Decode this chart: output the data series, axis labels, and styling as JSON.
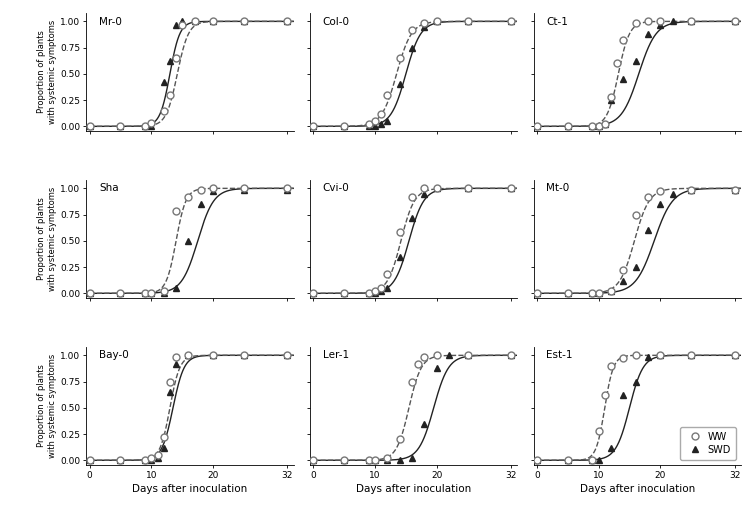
{
  "panels": [
    {
      "title": "Mr-0",
      "ww_points": [
        [
          0,
          0
        ],
        [
          5,
          0
        ],
        [
          9,
          0.0
        ],
        [
          10,
          0.03
        ],
        [
          12,
          0.15
        ],
        [
          13,
          0.3
        ],
        [
          14,
          0.65
        ],
        [
          15,
          0.97
        ],
        [
          17,
          1.0
        ],
        [
          20,
          1.0
        ],
        [
          25,
          1.0
        ],
        [
          32,
          1.0
        ]
      ],
      "swd_points": [
        [
          0,
          0
        ],
        [
          5,
          0
        ],
        [
          9,
          0.0
        ],
        [
          10,
          0.0
        ],
        [
          12,
          0.42
        ],
        [
          13,
          0.62
        ],
        [
          14,
          0.97
        ],
        [
          15,
          1.0
        ],
        [
          17,
          1.0
        ],
        [
          20,
          1.0
        ],
        [
          25,
          1.0
        ],
        [
          32,
          1.0
        ]
      ],
      "ww_inflection": 14.2,
      "ww_slope": 0.9,
      "swd_inflection": 13.0,
      "swd_slope": 0.8
    },
    {
      "title": "Col-0",
      "ww_points": [
        [
          0,
          0
        ],
        [
          5,
          0
        ],
        [
          9,
          0.02
        ],
        [
          10,
          0.05
        ],
        [
          11,
          0.12
        ],
        [
          12,
          0.3
        ],
        [
          14,
          0.65
        ],
        [
          16,
          0.92
        ],
        [
          18,
          0.98
        ],
        [
          20,
          1.0
        ],
        [
          25,
          1.0
        ],
        [
          32,
          1.0
        ]
      ],
      "swd_points": [
        [
          0,
          0
        ],
        [
          5,
          0
        ],
        [
          9,
          0.0
        ],
        [
          10,
          0.0
        ],
        [
          11,
          0.02
        ],
        [
          12,
          0.05
        ],
        [
          14,
          0.4
        ],
        [
          16,
          0.75
        ],
        [
          18,
          0.95
        ],
        [
          20,
          1.0
        ],
        [
          25,
          1.0
        ],
        [
          32,
          1.0
        ]
      ],
      "ww_inflection": 13.5,
      "ww_slope": 1.2,
      "swd_inflection": 15.0,
      "swd_slope": 1.2
    },
    {
      "title": "Ct-1",
      "ww_points": [
        [
          0,
          0
        ],
        [
          5,
          0
        ],
        [
          9,
          0.0
        ],
        [
          10,
          0.0
        ],
        [
          11,
          0.02
        ],
        [
          12,
          0.28
        ],
        [
          13,
          0.6
        ],
        [
          14,
          0.82
        ],
        [
          16,
          0.98
        ],
        [
          18,
          1.0
        ],
        [
          20,
          1.0
        ],
        [
          25,
          1.0
        ],
        [
          32,
          1.0
        ]
      ],
      "swd_points": [
        [
          0,
          0
        ],
        [
          5,
          0
        ],
        [
          9,
          0.0
        ],
        [
          10,
          0.0
        ],
        [
          11,
          0.02
        ],
        [
          12,
          0.25
        ],
        [
          14,
          0.45
        ],
        [
          16,
          0.62
        ],
        [
          18,
          0.88
        ],
        [
          20,
          0.97
        ],
        [
          22,
          1.0
        ],
        [
          25,
          1.0
        ],
        [
          32,
          1.0
        ]
      ],
      "ww_inflection": 13.2,
      "ww_slope": 0.9,
      "swd_inflection": 16.5,
      "swd_slope": 1.4
    },
    {
      "title": "Sha",
      "ww_points": [
        [
          0,
          0
        ],
        [
          5,
          0
        ],
        [
          9,
          0.0
        ],
        [
          10,
          0.0
        ],
        [
          12,
          0.02
        ],
        [
          14,
          0.78
        ],
        [
          16,
          0.92
        ],
        [
          18,
          0.98
        ],
        [
          20,
          1.0
        ],
        [
          25,
          1.0
        ],
        [
          32,
          1.0
        ]
      ],
      "swd_points": [
        [
          0,
          0
        ],
        [
          5,
          0
        ],
        [
          9,
          0.0
        ],
        [
          10,
          0.0
        ],
        [
          12,
          0.0
        ],
        [
          14,
          0.05
        ],
        [
          16,
          0.5
        ],
        [
          18,
          0.85
        ],
        [
          20,
          0.97
        ],
        [
          25,
          0.98
        ],
        [
          32,
          0.98
        ]
      ],
      "ww_inflection": 14.0,
      "ww_slope": 0.8,
      "swd_inflection": 17.5,
      "swd_slope": 1.3
    },
    {
      "title": "Cvi-0",
      "ww_points": [
        [
          0,
          0
        ],
        [
          5,
          0
        ],
        [
          9,
          0.0
        ],
        [
          10,
          0.02
        ],
        [
          11,
          0.05
        ],
        [
          12,
          0.18
        ],
        [
          14,
          0.58
        ],
        [
          16,
          0.92
        ],
        [
          18,
          1.0
        ],
        [
          20,
          1.0
        ],
        [
          25,
          1.0
        ],
        [
          32,
          1.0
        ]
      ],
      "swd_points": [
        [
          0,
          0
        ],
        [
          5,
          0
        ],
        [
          9,
          0.0
        ],
        [
          10,
          0.0
        ],
        [
          11,
          0.02
        ],
        [
          12,
          0.05
        ],
        [
          14,
          0.35
        ],
        [
          16,
          0.72
        ],
        [
          18,
          0.95
        ],
        [
          20,
          1.0
        ],
        [
          25,
          1.0
        ],
        [
          32,
          1.0
        ]
      ],
      "ww_inflection": 14.2,
      "ww_slope": 1.1,
      "swd_inflection": 15.5,
      "swd_slope": 1.2
    },
    {
      "title": "Mt-0",
      "ww_points": [
        [
          0,
          0
        ],
        [
          5,
          0
        ],
        [
          9,
          0.0
        ],
        [
          10,
          0.0
        ],
        [
          12,
          0.02
        ],
        [
          14,
          0.22
        ],
        [
          16,
          0.75
        ],
        [
          18,
          0.92
        ],
        [
          20,
          0.97
        ],
        [
          25,
          0.98
        ],
        [
          32,
          0.98
        ]
      ],
      "swd_points": [
        [
          0,
          0
        ],
        [
          5,
          0
        ],
        [
          9,
          0.0
        ],
        [
          10,
          0.0
        ],
        [
          12,
          0.02
        ],
        [
          14,
          0.12
        ],
        [
          16,
          0.25
        ],
        [
          18,
          0.6
        ],
        [
          20,
          0.85
        ],
        [
          22,
          0.95
        ],
        [
          25,
          0.98
        ],
        [
          32,
          0.98
        ]
      ],
      "ww_inflection": 15.8,
      "ww_slope": 1.2,
      "swd_inflection": 19.0,
      "swd_slope": 1.5
    },
    {
      "title": "Bay-0",
      "ww_points": [
        [
          0,
          0
        ],
        [
          5,
          0
        ],
        [
          9,
          0.0
        ],
        [
          10,
          0.02
        ],
        [
          11,
          0.05
        ],
        [
          12,
          0.22
        ],
        [
          13,
          0.75
        ],
        [
          14,
          0.98
        ],
        [
          16,
          1.0
        ],
        [
          20,
          1.0
        ],
        [
          25,
          1.0
        ],
        [
          32,
          1.0
        ]
      ],
      "swd_points": [
        [
          0,
          0
        ],
        [
          5,
          0
        ],
        [
          9,
          0.0
        ],
        [
          10,
          0.0
        ],
        [
          11,
          0.02
        ],
        [
          12,
          0.12
        ],
        [
          13,
          0.65
        ],
        [
          14,
          0.92
        ],
        [
          16,
          1.0
        ],
        [
          20,
          1.0
        ],
        [
          25,
          1.0
        ],
        [
          32,
          1.0
        ]
      ],
      "ww_inflection": 13.0,
      "ww_slope": 0.8,
      "swd_inflection": 13.5,
      "swd_slope": 0.9
    },
    {
      "title": "Ler-1",
      "ww_points": [
        [
          0,
          0
        ],
        [
          5,
          0
        ],
        [
          9,
          0.0
        ],
        [
          10,
          0.0
        ],
        [
          12,
          0.02
        ],
        [
          14,
          0.2
        ],
        [
          16,
          0.75
        ],
        [
          17,
          0.92
        ],
        [
          18,
          0.98
        ],
        [
          20,
          1.0
        ],
        [
          25,
          1.0
        ],
        [
          32,
          1.0
        ]
      ],
      "swd_points": [
        [
          0,
          0
        ],
        [
          5,
          0
        ],
        [
          9,
          0.0
        ],
        [
          10,
          0.0
        ],
        [
          12,
          0.0
        ],
        [
          14,
          0.0
        ],
        [
          16,
          0.02
        ],
        [
          18,
          0.35
        ],
        [
          20,
          0.88
        ],
        [
          22,
          1.0
        ],
        [
          25,
          1.0
        ],
        [
          32,
          1.0
        ]
      ],
      "ww_inflection": 15.5,
      "ww_slope": 1.0,
      "swd_inflection": 19.5,
      "swd_slope": 1.2
    },
    {
      "title": "Est-1",
      "ww_points": [
        [
          0,
          0
        ],
        [
          5,
          0
        ],
        [
          9,
          0.0
        ],
        [
          10,
          0.28
        ],
        [
          11,
          0.62
        ],
        [
          12,
          0.9
        ],
        [
          14,
          0.97
        ],
        [
          16,
          1.0
        ],
        [
          20,
          1.0
        ],
        [
          25,
          1.0
        ],
        [
          32,
          1.0
        ]
      ],
      "swd_points": [
        [
          0,
          0
        ],
        [
          5,
          0
        ],
        [
          9,
          0.0
        ],
        [
          10,
          0.0
        ],
        [
          12,
          0.12
        ],
        [
          14,
          0.62
        ],
        [
          16,
          0.75
        ],
        [
          18,
          0.98
        ],
        [
          20,
          1.0
        ],
        [
          25,
          1.0
        ],
        [
          32,
          1.0
        ]
      ],
      "ww_inflection": 11.0,
      "ww_slope": 0.7,
      "swd_inflection": 15.0,
      "swd_slope": 1.1
    }
  ],
  "ylabel": "Proportion of plants\nwith systemic symptoms",
  "xlabel": "Days after inoculation",
  "ytick_labels": [
    "0.00",
    "0.25",
    "0.50",
    "0.75",
    "1.00"
  ],
  "yticks": [
    0.0,
    0.25,
    0.5,
    0.75,
    1.0
  ],
  "xticks": [
    0,
    10,
    20,
    32
  ],
  "xlim": [
    -0.5,
    33
  ],
  "ylim": [
    -0.04,
    1.08
  ],
  "line_color": "#333333",
  "ww_marker_color": "#999999",
  "swd_marker_color": "#333333",
  "legend_labels": [
    "WW",
    "SWD"
  ]
}
